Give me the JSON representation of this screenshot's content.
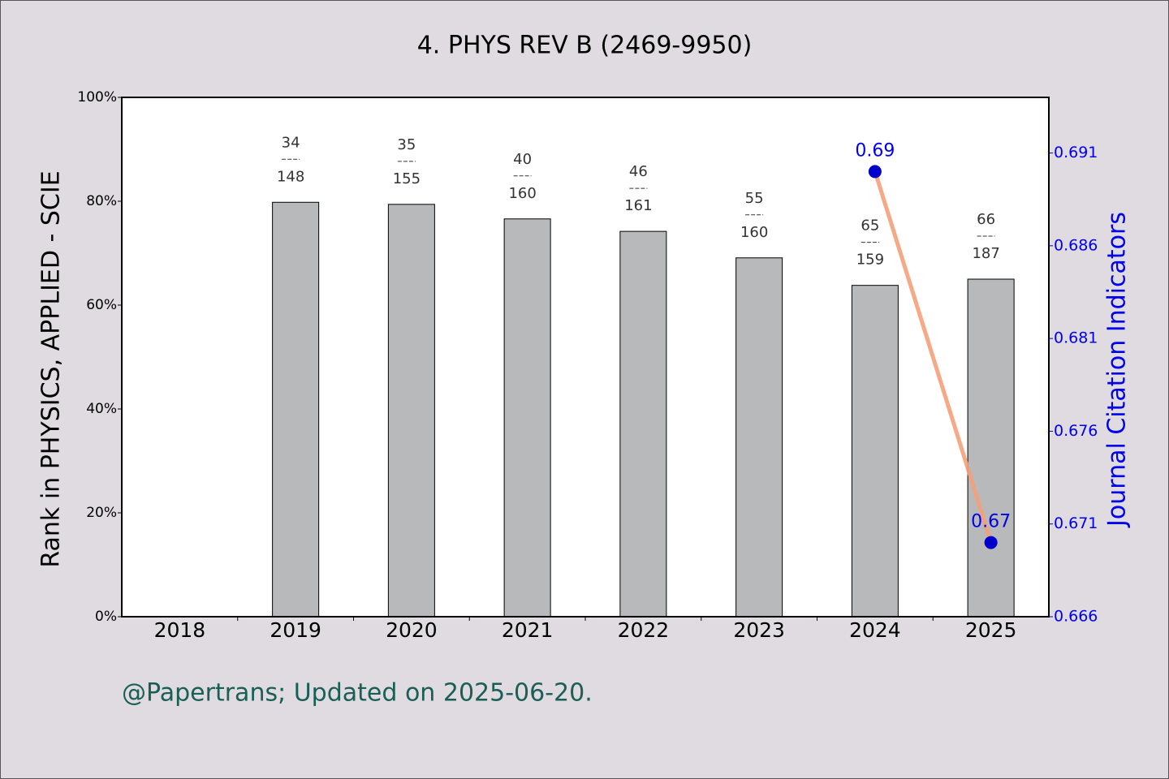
{
  "chart_data": {
    "type": "bar",
    "title": "4. PHYS REV B (2469-9950)",
    "y_label": "Rank in PHYSICS, APPLIED - SCIE",
    "y2_label": "Journal Citation Indicators",
    "footer": "@Papertrans; Updated on 2025-06-20.",
    "categories": [
      "2018",
      "2019",
      "2020",
      "2021",
      "2022",
      "2023",
      "2024",
      "2025"
    ],
    "series": [
      {
        "type": "bar",
        "color": "#b8b9bb",
        "values": [
          null,
          79.8,
          79.4,
          76.6,
          74.2,
          69.1,
          63.8,
          65.0
        ],
        "annotations": [
          null,
          {
            "rank": "34",
            "total": "148"
          },
          {
            "rank": "35",
            "total": "155"
          },
          {
            "rank": "40",
            "total": "160"
          },
          {
            "rank": "46",
            "total": "161"
          },
          {
            "rank": "55",
            "total": "160"
          },
          {
            "rank": "65",
            "total": "159"
          },
          {
            "rank": "66",
            "total": "187"
          }
        ]
      },
      {
        "type": "line",
        "axis": "y2",
        "color": "#f4a07a",
        "marker_color": "#0000cc",
        "values": [
          null,
          null,
          null,
          null,
          null,
          null,
          0.69,
          0.67
        ],
        "value_labels": [
          null,
          null,
          null,
          null,
          null,
          null,
          "0.69",
          "0.67"
        ]
      }
    ],
    "ylim": [
      0,
      100
    ],
    "yticks": [
      {
        "value": 0,
        "label": "0%"
      },
      {
        "value": 20,
        "label": "20%"
      },
      {
        "value": 40,
        "label": "40%"
      },
      {
        "value": 60,
        "label": "60%"
      },
      {
        "value": 80,
        "label": "80%"
      },
      {
        "value": 100,
        "label": "100%"
      }
    ],
    "y2lim": [
      0.666,
      0.694
    ],
    "y2ticks": [
      0.666,
      0.671,
      0.676,
      0.681,
      0.686,
      0.691
    ]
  }
}
